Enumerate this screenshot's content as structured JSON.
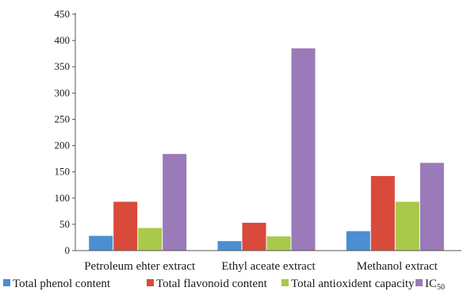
{
  "chart_data": {
    "type": "bar",
    "categories": [
      "Petroleum ehter extract",
      "Ethyl aceate extract",
      "Methanol extract"
    ],
    "series": [
      {
        "name": "Total phenol content",
        "values": [
          28,
          18,
          37
        ],
        "color": "#4a8fd1"
      },
      {
        "name": "Total flavonoid content",
        "values": [
          93,
          53,
          142
        ],
        "color": "#d94a3a"
      },
      {
        "name": "Total antioxident capacity",
        "values": [
          43,
          27,
          93
        ],
        "color": "#a8c94a"
      },
      {
        "name": "IC",
        "name_subscript": "50",
        "values": [
          184,
          385,
          167
        ],
        "color": "#9a7ab8"
      }
    ],
    "ylim": [
      0,
      450
    ],
    "yticks": [
      "0",
      "50",
      "100",
      "150",
      "200",
      "250",
      "300",
      "350",
      "400",
      "450"
    ],
    "grid": false,
    "legend_position": "bottom"
  }
}
